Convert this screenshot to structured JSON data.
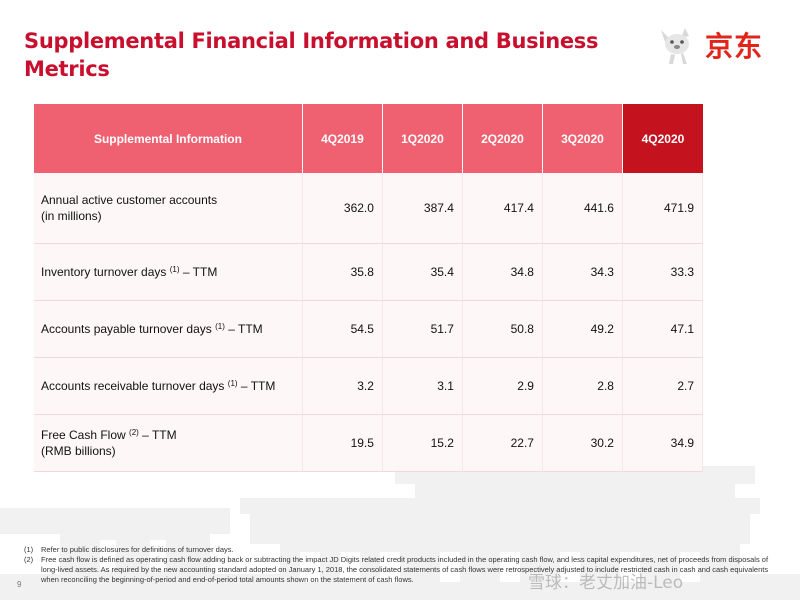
{
  "title_line1": "Supplemental Financial Information and Business",
  "title_line2": "Metrics",
  "logo": {
    "text": "京东",
    "icon": "jd-dog-mascot-icon",
    "color": "#e1251b"
  },
  "table": {
    "header": [
      "Supplemental Information",
      "4Q2019",
      "1Q2020",
      "2Q2020",
      "3Q2020",
      "4Q2020"
    ],
    "rows": [
      {
        "label": "Annual active customer accounts",
        "label2": "(in millions)",
        "values": [
          "362.0",
          "387.4",
          "417.4",
          "441.6",
          "471.9"
        ]
      },
      {
        "label": "Inventory turnover days",
        "sup": "(1)",
        "suffix": " – TTM",
        "values": [
          "35.8",
          "35.4",
          "34.8",
          "34.3",
          "33.3"
        ]
      },
      {
        "label": "Accounts payable turnover days",
        "sup": "(1)",
        "suffix": " – TTM",
        "values": [
          "54.5",
          "51.7",
          "50.8",
          "49.2",
          "47.1"
        ]
      },
      {
        "label": "Accounts receivable turnover days",
        "sup": "(1)",
        "suffix": " – TTM",
        "values": [
          "3.2",
          "3.1",
          "2.9",
          "2.8",
          "2.7"
        ]
      },
      {
        "label": "Free Cash Flow",
        "sup": "(2)",
        "suffix": " – TTM",
        "label2": "(RMB billions)",
        "values": [
          "19.5",
          "15.2",
          "22.7",
          "30.2",
          "34.9"
        ]
      }
    ]
  },
  "footnotes": [
    {
      "num": "(1)",
      "text": "Refer to public disclosures for definitions of turnover days."
    },
    {
      "num": "(2)",
      "text": "Free cash flow is defined as operating cash flow adding back or subtracting the impact JD Digits related credit products included in the operating cash flow, and less capital expenditures, net of proceeds from disposals of long-lived assets. As required by the new accounting standard adopted on January 1, 2018, the consolidated statements of cash flows were retrospectively adjusted to include restricted cash in cash and cash equivalents when reconciling the beginning-of-period and end-of-period total amounts shown on the statement of cash flows."
    }
  ],
  "page_number": "9",
  "watermark": "雪球：老丈加油-Leo",
  "colors": {
    "title": "#c8102e",
    "header": "#ef6170",
    "header_highlight": "#c4121e"
  }
}
